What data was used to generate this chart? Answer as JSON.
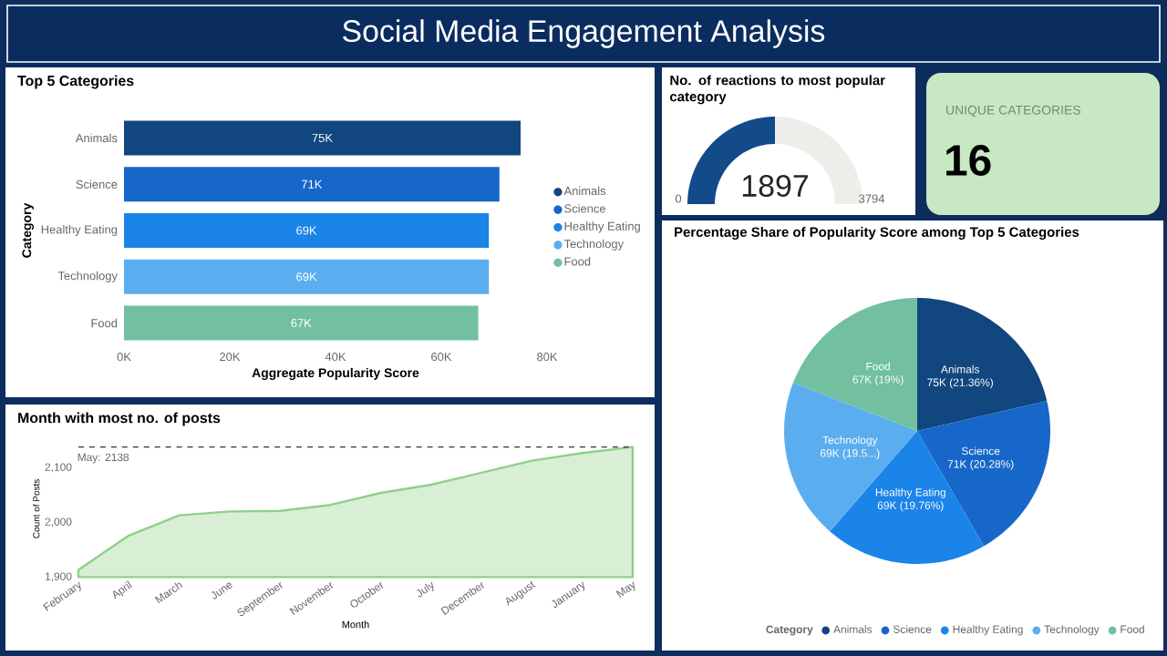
{
  "chart_data": [
    {
      "type": "other",
      "title": "Social Media Engagement Analysis"
    },
    {
      "type": "bar",
      "title": "Top 5 Categories",
      "orientation": "horizontal",
      "categories": [
        "Animals",
        "Science",
        "Healthy Eating",
        "Technology",
        "Food"
      ],
      "series": [
        {
          "name": "Animals",
          "color": "#12467f",
          "values": [
            75000,
            null,
            null,
            null,
            null
          ],
          "value_labels": [
            "75K",
            null,
            null,
            null,
            null
          ]
        },
        {
          "name": "Science",
          "color": "#1667c9",
          "values": [
            null,
            71000,
            null,
            null,
            null
          ],
          "value_labels": [
            null,
            "71K",
            null,
            null,
            null
          ]
        },
        {
          "name": "Healthy Eating",
          "color": "#1b84e8",
          "values": [
            null,
            null,
            69000,
            null,
            null
          ],
          "value_labels": [
            null,
            null,
            "69K",
            null,
            null
          ]
        },
        {
          "name": "Technology",
          "color": "#5aaef0",
          "values": [
            null,
            null,
            null,
            69000,
            null
          ],
          "value_labels": [
            null,
            null,
            null,
            "69K",
            null
          ]
        },
        {
          "name": "Food",
          "color": "#72c0a0",
          "values": [
            null,
            null,
            null,
            null,
            67000
          ],
          "value_labels": [
            null,
            null,
            null,
            null,
            "67K"
          ]
        }
      ],
      "xlim": [
        0,
        80000
      ],
      "xticks": [
        {
          "value": 0,
          "label": "0K"
        },
        {
          "value": 20000,
          "label": "20K"
        },
        {
          "value": 40000,
          "label": "40K"
        },
        {
          "value": 60000,
          "label": "60K"
        },
        {
          "value": 80000,
          "label": "80K"
        }
      ],
      "xlabel": "Aggregate Popularity Score",
      "ylabel": "Category",
      "legend": "right"
    },
    {
      "type": "donut",
      "title": "No. of reactions to most popular category",
      "categories": [
        null,
        null
      ],
      "values": [
        1897,
        1897
      ],
      "colors": [
        "#124a8a",
        "#efedea"
      ],
      "value_labels": [
        "1897",
        null
      ],
      "annotations": [
        "0",
        "3794"
      ]
    },
    {
      "type": "other",
      "title": "UNIQUE CATEGORIES",
      "annotations": [
        "16"
      ]
    },
    {
      "type": "pie",
      "title": "Percentage Share of Popularity Score among Top 5 Categories",
      "categories": [
        "Animals",
        "Science",
        "Healthy Eating",
        "Technology",
        "Food"
      ],
      "values": [
        21.36,
        20.28,
        19.76,
        19.5,
        19.1
      ],
      "value_labels": [
        "75K (21.36%)",
        "71K (20.28%)",
        "69K (19.76%)",
        "69K (19.5...)",
        "67K (19%)"
      ],
      "colors": [
        "#12467f",
        "#1667c9",
        "#1b84e8",
        "#5aaef0",
        "#72c0a0"
      ],
      "legend": "bottom",
      "legend_title": "Category"
    },
    {
      "type": "area",
      "title": "Month with most no. of posts",
      "categories": [
        "February",
        "April",
        "March",
        "June",
        "September",
        "November",
        "October",
        "July",
        "December",
        "August",
        "January",
        "May"
      ],
      "values": [
        1913,
        1976,
        2013,
        2020,
        2021,
        2032,
        2054,
        2069,
        2091,
        2113,
        2127,
        2138
      ],
      "color": "#8fd08a",
      "ylim": [
        1900,
        2150
      ],
      "yticks": [
        {
          "value": 1900,
          "label": "1,900"
        },
        {
          "value": 2000,
          "label": "2,000"
        },
        {
          "value": 2100,
          "label": "2,100"
        }
      ],
      "xlabel": "Month",
      "ylabel": "Count of Posts",
      "ref_lines": [
        {
          "axis": "y",
          "value": 2138,
          "label": "May: 2138",
          "line_style": "dashed",
          "color": "#333333"
        }
      ]
    }
  ]
}
